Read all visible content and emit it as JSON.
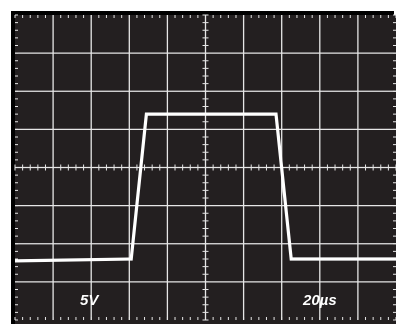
{
  "chart_data": {
    "type": "line",
    "title": "",
    "xlabel": "",
    "ylabel": "",
    "x_divisions": 10,
    "y_divisions": 8,
    "grid": true,
    "center_axis_ticks": true,
    "minor_ticks_per_division": 5,
    "volts_per_div_label": "5V",
    "time_per_div_label": "20µs",
    "xlim": [
      0,
      10
    ],
    "ylim": [
      0,
      8
    ],
    "series": [
      {
        "x": [
          0,
          3.05,
          3.45,
          6.85,
          7.25,
          10
        ],
        "y": [
          1.55,
          1.6,
          5.4,
          5.4,
          1.6,
          1.6
        ]
      }
    ],
    "colors": {
      "background": "#231f20",
      "grid": "#e6e6e6",
      "trace": "#ffffff",
      "frame": "#000000",
      "page": "#ffffff"
    }
  }
}
